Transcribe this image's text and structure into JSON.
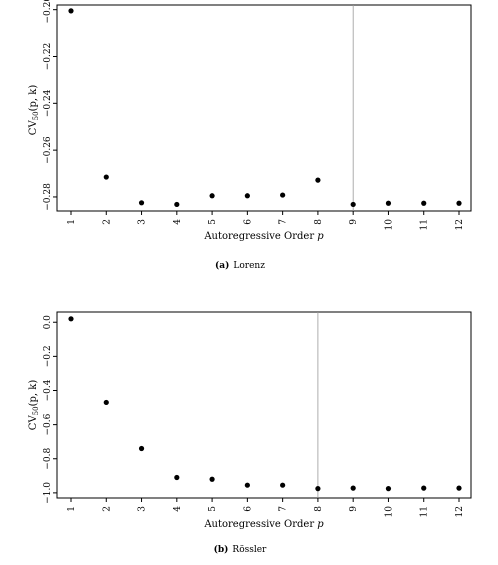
{
  "chart_data": [
    {
      "type": "scatter",
      "caption_tag": "(a)",
      "caption_name": "Lorenz",
      "xlabel": "Autoregressive Order p",
      "ylabel": "CV50(p, k)",
      "x": [
        1,
        2,
        3,
        4,
        5,
        6,
        7,
        8,
        9,
        10,
        11,
        12
      ],
      "y": [
        -0.2005,
        -0.2715,
        -0.2825,
        -0.2832,
        -0.2795,
        -0.2795,
        -0.2792,
        -0.2728,
        -0.2832,
        -0.2827,
        -0.2827,
        -0.2827
      ],
      "xticks": [
        "1",
        "2",
        "3",
        "4",
        "5",
        "6",
        "7",
        "8",
        "9",
        "10",
        "11",
        "12"
      ],
      "yticks": [
        "-0.20",
        "-0.22",
        "-0.24",
        "-0.26",
        "-0.28"
      ],
      "ylim": [
        -0.286,
        -0.198
      ],
      "vline_x": 9,
      "grid": false
    },
    {
      "type": "scatter",
      "caption_tag": "(b)",
      "caption_name": "Rössler",
      "xlabel": "Autoregressive Order p",
      "ylabel": "CV50(p, k)",
      "x": [
        1,
        2,
        3,
        4,
        5,
        6,
        7,
        8,
        9,
        10,
        11,
        12
      ],
      "y": [
        0.02,
        -0.47,
        -0.74,
        -0.91,
        -0.92,
        -0.955,
        -0.955,
        -0.975,
        -0.972,
        -0.975,
        -0.972,
        -0.972
      ],
      "xticks": [
        "1",
        "2",
        "3",
        "4",
        "5",
        "6",
        "7",
        "8",
        "9",
        "10",
        "11",
        "12"
      ],
      "yticks": [
        "0.0",
        "-0.2",
        "-0.4",
        "-0.6",
        "-0.8",
        "-1.0"
      ],
      "ylim": [
        -1.03,
        0.06
      ],
      "vline_x": 8,
      "grid": false
    }
  ]
}
